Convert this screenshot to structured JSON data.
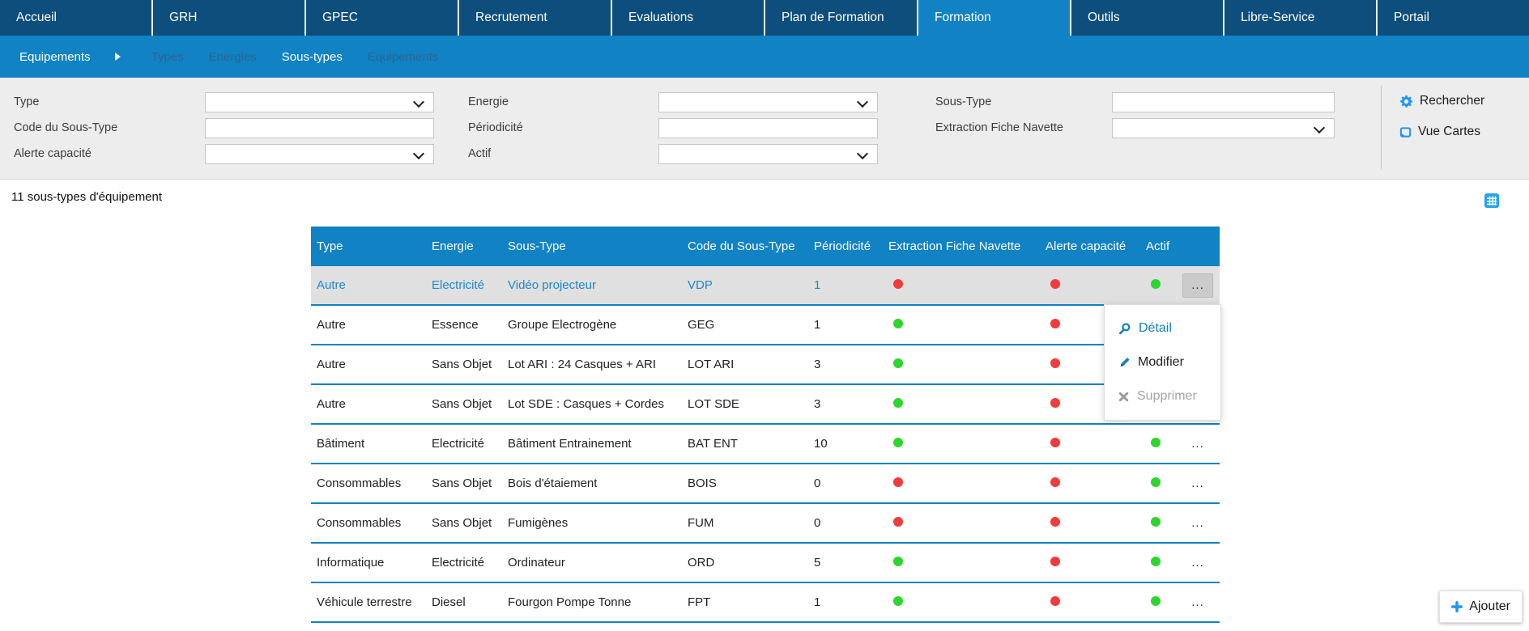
{
  "topnav": {
    "tabs": [
      {
        "label": "Accueil",
        "active": false
      },
      {
        "label": "GRH",
        "active": false
      },
      {
        "label": "GPEC",
        "active": false
      },
      {
        "label": "Recrutement",
        "active": false
      },
      {
        "label": "Evaluations",
        "active": false
      },
      {
        "label": "Plan de Formation",
        "active": false
      },
      {
        "label": "Formation",
        "active": true
      },
      {
        "label": "Outils",
        "active": false
      },
      {
        "label": "Libre-Service",
        "active": false
      },
      {
        "label": "Portail",
        "active": false
      }
    ]
  },
  "subnav": {
    "root_label": "Equipements",
    "items": [
      {
        "label": "Types",
        "state": "dim"
      },
      {
        "label": "Energies",
        "state": "dim"
      },
      {
        "label": "Sous-types",
        "state": "active"
      },
      {
        "label": "Equipements",
        "state": "dim"
      }
    ]
  },
  "filters": {
    "fields": [
      {
        "label": "Type",
        "type": "select",
        "row": 1,
        "col": 1,
        "value": ""
      },
      {
        "label": "Energie",
        "type": "select",
        "row": 1,
        "col": 2,
        "value": ""
      },
      {
        "label": "Sous-Type",
        "type": "text",
        "row": 1,
        "col": 3,
        "value": ""
      },
      {
        "label": "Code du Sous-Type",
        "type": "text",
        "row": 2,
        "col": 1,
        "value": ""
      },
      {
        "label": "Périodicité",
        "type": "text",
        "row": 2,
        "col": 2,
        "value": ""
      },
      {
        "label": "Extraction Fiche Navette",
        "type": "select",
        "row": 2,
        "col": 3,
        "value": ""
      },
      {
        "label": "Alerte capacité",
        "type": "select",
        "row": 3,
        "col": 1,
        "value": ""
      },
      {
        "label": "Actif",
        "type": "select",
        "row": 3,
        "col": 2,
        "value": ""
      }
    ],
    "search_label": "Rechercher",
    "cards_label": "Vue Cartes"
  },
  "content": {
    "count_text": "11 sous-types d'équipement",
    "table": {
      "columns": [
        "Type",
        "Energie",
        "Sous-Type",
        "Code du Sous-Type",
        "Périodicité",
        "Extraction Fiche Navette",
        "Alerte capacité",
        "Actif"
      ],
      "more_label": "...",
      "rows": [
        {
          "type": "Autre",
          "energie": "Electricité",
          "sous_type": "Vidéo projecteur",
          "code": "VDP",
          "periodicite": "1",
          "extraction": "red",
          "alerte": "red",
          "actif": "green",
          "selected": true,
          "more_visible": true
        },
        {
          "type": "Autre",
          "energie": "Essence",
          "sous_type": "Groupe Electrogène",
          "code": "GEG",
          "periodicite": "1",
          "extraction": "green",
          "alerte": "red",
          "actif": null,
          "selected": false,
          "more_visible": false
        },
        {
          "type": "Autre",
          "energie": "Sans Objet",
          "sous_type": "Lot ARI : 24 Casques + ARI",
          "code": "LOT ARI",
          "periodicite": "3",
          "extraction": "green",
          "alerte": "red",
          "actif": null,
          "selected": false,
          "more_visible": false
        },
        {
          "type": "Autre",
          "energie": "Sans Objet",
          "sous_type": "Lot SDE : Casques + Cordes",
          "code": "LOT SDE",
          "periodicite": "3",
          "extraction": "green",
          "alerte": "red",
          "actif": null,
          "selected": false,
          "more_visible": false
        },
        {
          "type": "Bâtiment",
          "energie": "Electricité",
          "sous_type": "Bâtiment Entrainement",
          "code": "BAT ENT",
          "periodicite": "10",
          "extraction": "green",
          "alerte": "red",
          "actif": "green",
          "selected": false,
          "more_visible": true
        },
        {
          "type": "Consommables",
          "energie": "Sans Objet",
          "sous_type": "Bois d'étaiement",
          "code": "BOIS",
          "periodicite": "0",
          "extraction": "red",
          "alerte": "red",
          "actif": "green",
          "selected": false,
          "more_visible": true
        },
        {
          "type": "Consommables",
          "energie": "Sans Objet",
          "sous_type": "Fumigènes",
          "code": "FUM",
          "periodicite": "0",
          "extraction": "red",
          "alerte": "red",
          "actif": "green",
          "selected": false,
          "more_visible": true
        },
        {
          "type": "Informatique",
          "energie": "Electricité",
          "sous_type": "Ordinateur",
          "code": "ORD",
          "periodicite": "5",
          "extraction": "green",
          "alerte": "red",
          "actif": "green",
          "selected": false,
          "more_visible": true
        },
        {
          "type": "Véhicule terrestre",
          "energie": "Diesel",
          "sous_type": "Fourgon Pompe Tonne",
          "code": "FPT",
          "periodicite": "1",
          "extraction": "green",
          "alerte": "red",
          "actif": "green",
          "selected": false,
          "more_visible": true
        }
      ]
    },
    "context_menu": {
      "items": [
        {
          "label": "Détail",
          "icon": "magnifier-icon",
          "style": "link"
        },
        {
          "label": "Modifier",
          "icon": "pencil-icon",
          "style": "normal"
        },
        {
          "label": "Supprimer",
          "icon": "x-icon",
          "style": "disabled"
        }
      ]
    },
    "add_label": "Ajouter"
  },
  "colors": {
    "nav_dark": "#0e4e7c",
    "accent_blue": "#1182c3",
    "icon_blue": "#2196f3",
    "red_dot": "#f23b3b",
    "green_dot": "#2ed52e",
    "selected_row_bg": "#e0e0e0"
  }
}
